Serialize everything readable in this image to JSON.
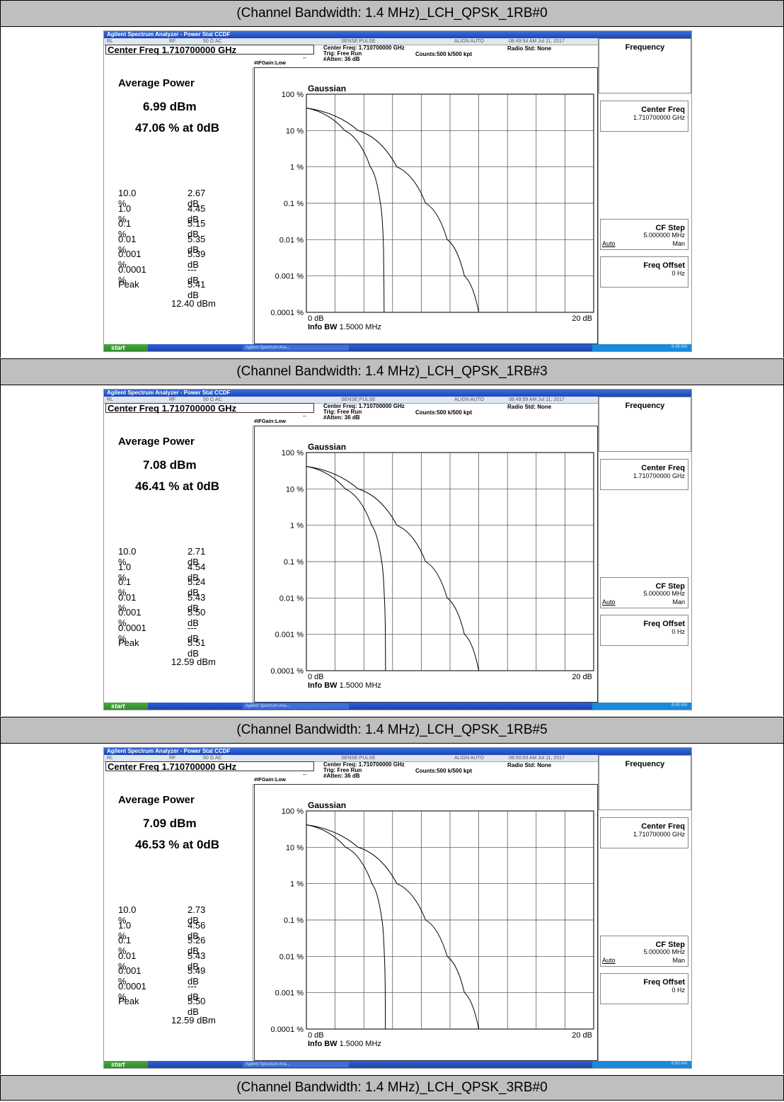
{
  "sections": [
    {
      "header": "(Channel Bandwidth: 1.4 MHz)_LCH_QPSK_1RB#0",
      "shot": {
        "title_bar": "Agilent Spectrum Analyzer - Power Stat CCDF",
        "strip": {
          "rl": "RL",
          "rf": "RF",
          "ohm": "50 Ω   AC",
          "sense": "SENSE:PULSE",
          "align": "ALIGN AUTO",
          "timestamp": "08:49:54 AM Jul 11, 2017"
        },
        "center_freq_label": "Center Freq 1.710700000 GHz",
        "if_gain": "#IFGain:Low",
        "center_freq_info": "Center Freq: 1.710700000 GHz",
        "trig": "Trig: Free Run",
        "atten": "#Atten: 36 dB",
        "counts": "Counts:500 k/500 kpt",
        "radio_std": "Radio Std: None",
        "avg_power_title": "Average Power",
        "avg_power_dbm": "6.99 dBm",
        "avg_pct": "47.06 % at 0dB",
        "stats": [
          {
            "k": "10.0 %",
            "v": "2.67 dB"
          },
          {
            "k": "1.0 %",
            "v": "4.45 dB"
          },
          {
            "k": "0.1 %",
            "v": "5.15 dB"
          },
          {
            "k": "0.01 %",
            "v": "5.35 dB"
          },
          {
            "k": "0.001 %",
            "v": "5.39 dB"
          },
          {
            "k": "0.0001 %",
            "v": "--- dB"
          },
          {
            "k": "Peak",
            "v": "5.41 dB"
          }
        ],
        "peak_dbm": "12.40 dBm",
        "graph": {
          "label": "Gaussian",
          "y_ticks": [
            "100 %",
            "10 %",
            "1 %",
            "0.1 %",
            "0.01 %",
            "0.001 %",
            "0.0001 %"
          ],
          "x_start": "0 dB",
          "x_end": "20 dB",
          "info_bw_label": "Info BW",
          "info_bw_value": "1.5000 MHz",
          "measured_db": [
            0,
            2.67,
            4.45,
            5.15,
            5.35,
            5.39,
            5.41
          ],
          "gaussian_db": [
            0,
            3.6,
            6.3,
            8.3,
            9.8,
            11.0,
            12.0
          ]
        },
        "softkeys": {
          "menu_title": "Frequency",
          "center_freq": {
            "name": "Center Freq",
            "value": "1.710700000 GHz"
          },
          "cf_step": {
            "name": "CF Step",
            "value": "5.000000 MHz",
            "auto": "Auto",
            "man": "Man"
          },
          "freq_offset": {
            "name": "Freq Offset",
            "value": "0 Hz"
          }
        },
        "taskbar": {
          "start": "start",
          "task": "Agilent Spectrum Ana...",
          "clock": "8:49 AM"
        }
      }
    },
    {
      "header": "(Channel Bandwidth: 1.4 MHz)_LCH_QPSK_1RB#3",
      "shot": {
        "title_bar": "Agilent Spectrum Analyzer - Power Stat CCDF",
        "strip": {
          "rl": "RL",
          "rf": "RF",
          "ohm": "50 Ω   AC",
          "sense": "SENSE:PULSE",
          "align": "ALIGN AUTO",
          "timestamp": "08:49:59 AM Jul 11, 2017"
        },
        "center_freq_label": "Center Freq 1.710700000 GHz",
        "if_gain": "#IFGain:Low",
        "center_freq_info": "Center Freq: 1.710700000 GHz",
        "trig": "Trig: Free Run",
        "atten": "#Atten: 36 dB",
        "counts": "Counts:500 k/500 kpt",
        "radio_std": "Radio Std: None",
        "avg_power_title": "Average Power",
        "avg_power_dbm": "7.08 dBm",
        "avg_pct": "46.41 % at 0dB",
        "stats": [
          {
            "k": "10.0 %",
            "v": "2.71 dB"
          },
          {
            "k": "1.0 %",
            "v": "4.54 dB"
          },
          {
            "k": "0.1 %",
            "v": "5.24 dB"
          },
          {
            "k": "0.01 %",
            "v": "5.43 dB"
          },
          {
            "k": "0.001 %",
            "v": "5.50 dB"
          },
          {
            "k": "0.0001 %",
            "v": "--- dB"
          },
          {
            "k": "Peak",
            "v": "5.51 dB"
          }
        ],
        "peak_dbm": "12.59 dBm",
        "graph": {
          "label": "Gaussian",
          "y_ticks": [
            "100 %",
            "10 %",
            "1 %",
            "0.1 %",
            "0.01 %",
            "0.001 %",
            "0.0001 %"
          ],
          "x_start": "0 dB",
          "x_end": "20 dB",
          "info_bw_label": "Info BW",
          "info_bw_value": "1.5000 MHz",
          "measured_db": [
            0,
            2.71,
            4.54,
            5.24,
            5.43,
            5.5,
            5.51
          ],
          "gaussian_db": [
            0,
            3.6,
            6.3,
            8.3,
            9.8,
            11.0,
            12.0
          ]
        },
        "softkeys": {
          "menu_title": "Frequency",
          "center_freq": {
            "name": "Center Freq",
            "value": "1.710700000 GHz"
          },
          "cf_step": {
            "name": "CF Step",
            "value": "5.000000 MHz",
            "auto": "Auto",
            "man": "Man"
          },
          "freq_offset": {
            "name": "Freq Offset",
            "value": "0 Hz"
          }
        },
        "taskbar": {
          "start": "start",
          "task": "Agilent Spectrum Ana...",
          "clock": "8:49 AM"
        }
      }
    },
    {
      "header": "(Channel Bandwidth: 1.4 MHz)_LCH_QPSK_1RB#5",
      "shot": {
        "title_bar": "Agilent Spectrum Analyzer - Power Stat CCDF",
        "strip": {
          "rl": "RL",
          "rf": "RF",
          "ohm": "50 Ω   AC",
          "sense": "SENSE:PULSE",
          "align": "ALIGN AUTO",
          "timestamp": "08:50:03 AM Jul 11, 2017"
        },
        "center_freq_label": "Center Freq 1.710700000 GHz",
        "if_gain": "#IFGain:Low",
        "center_freq_info": "Center Freq: 1.710700000 GHz",
        "trig": "Trig: Free Run",
        "atten": "#Atten: 36 dB",
        "counts": "Counts:500 k/500 kpt",
        "radio_std": "Radio Std: None",
        "avg_power_title": "Average Power",
        "avg_power_dbm": "7.09 dBm",
        "avg_pct": "46.53 % at 0dB",
        "stats": [
          {
            "k": "10.0 %",
            "v": "2.73 dB"
          },
          {
            "k": "1.0 %",
            "v": "4.56 dB"
          },
          {
            "k": "0.1 %",
            "v": "5.26 dB"
          },
          {
            "k": "0.01 %",
            "v": "5.43 dB"
          },
          {
            "k": "0.001 %",
            "v": "5.49 dB"
          },
          {
            "k": "0.0001 %",
            "v": "--- dB"
          },
          {
            "k": "Peak",
            "v": "5.50 dB"
          }
        ],
        "peak_dbm": "12.59 dBm",
        "graph": {
          "label": "Gaussian",
          "y_ticks": [
            "100 %",
            "10 %",
            "1 %",
            "0.1 %",
            "0.01 %",
            "0.001 %",
            "0.0001 %"
          ],
          "x_start": "0 dB",
          "x_end": "20 dB",
          "info_bw_label": "Info BW",
          "info_bw_value": "1.5000 MHz",
          "measured_db": [
            0,
            2.73,
            4.56,
            5.26,
            5.43,
            5.49,
            5.5
          ],
          "gaussian_db": [
            0,
            3.6,
            6.3,
            8.3,
            9.8,
            11.0,
            12.0
          ]
        },
        "softkeys": {
          "menu_title": "Frequency",
          "center_freq": {
            "name": "Center Freq",
            "value": "1.710700000 GHz"
          },
          "cf_step": {
            "name": "CF Step",
            "value": "5.000000 MHz",
            "auto": "Auto",
            "man": "Man"
          },
          "freq_offset": {
            "name": "Freq Offset",
            "value": "0 Hz"
          }
        },
        "taskbar": {
          "start": "start",
          "task": "Agilent Spectrum Ana...",
          "clock": "8:50 AM"
        }
      }
    }
  ],
  "last_header": "(Channel Bandwidth: 1.4 MHz)_LCH_QPSK_3RB#0"
}
